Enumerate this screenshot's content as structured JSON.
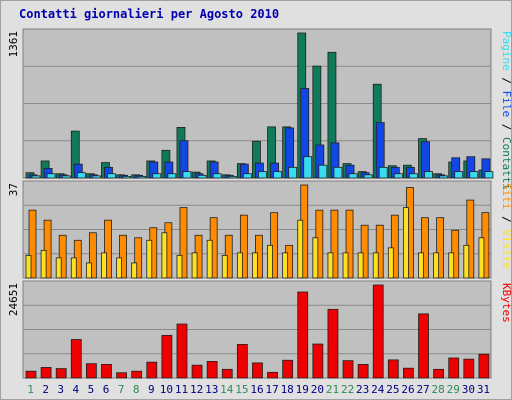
{
  "title": "Contatti giornalieri per Agosto 2010",
  "colors": {
    "background": "#e0e0e0",
    "panel": "#c0c0c0",
    "contatti": "#117a5a",
    "file": "#1346e6",
    "pagine": "#37dcf0",
    "visite": "#ff8c00",
    "siti": "#ffe020",
    "kbytes": "#ee0000",
    "weekend_label": "#2e8b57",
    "weekday_label": "#000080"
  },
  "chart_data": [
    {
      "type": "bar",
      "id": "top",
      "ymax_label": "1361",
      "ylim": [
        0,
        1361
      ],
      "legend": {
        "pagine": "Pagine",
        "sep1": " / ",
        "file": "File",
        "sep2": " / ",
        "contatti": "Contatti"
      },
      "series": [
        {
          "name": "Contatti",
          "color": "#117a5a",
          "values": [
            50,
            160,
            40,
            440,
            40,
            145,
            30,
            30,
            160,
            260,
            475,
            55,
            160,
            30,
            135,
            345,
            480,
            480,
            1361,
            1050,
            1180,
            135,
            60,
            880,
            115,
            120,
            370,
            40,
            150,
            160,
            75
          ]
        },
        {
          "name": "File",
          "color": "#1346e6",
          "values": [
            30,
            90,
            30,
            130,
            30,
            100,
            25,
            25,
            150,
            150,
            350,
            40,
            150,
            25,
            130,
            140,
            140,
            470,
            840,
            310,
            330,
            120,
            50,
            520,
            100,
            100,
            340,
            30,
            190,
            200,
            180
          ]
        },
        {
          "name": "Pagine",
          "color": "#37dcf0",
          "values": [
            20,
            40,
            20,
            50,
            20,
            40,
            15,
            15,
            40,
            40,
            60,
            25,
            40,
            15,
            40,
            60,
            60,
            100,
            200,
            120,
            100,
            40,
            30,
            100,
            40,
            40,
            60,
            20,
            60,
            60,
            60
          ]
        }
      ]
    },
    {
      "type": "bar",
      "id": "mid",
      "ymax_label": "37",
      "ylim": [
        0,
        37
      ],
      "legend": {
        "siti": "Siti",
        "sep": " / ",
        "visite": "Visite"
      },
      "series": [
        {
          "name": "Visite",
          "color": "#ff8c00",
          "values": [
            27,
            23,
            17,
            15,
            18,
            23,
            17,
            16,
            20,
            22,
            28,
            17,
            24,
            17,
            25,
            17,
            26,
            13,
            37,
            27,
            27,
            27,
            21,
            21,
            25,
            36,
            24,
            24,
            19,
            31,
            26
          ]
        },
        {
          "name": "Siti",
          "color": "#ffe020",
          "values": [
            9,
            11,
            8,
            8,
            6,
            10,
            8,
            6,
            15,
            18,
            9,
            10,
            15,
            9,
            10,
            10,
            13,
            10,
            23,
            16,
            10,
            10,
            10,
            10,
            12,
            28,
            10,
            10,
            10,
            13,
            16
          ]
        }
      ]
    },
    {
      "type": "bar",
      "id": "bot",
      "ymax_label": "24651",
      "ylim": [
        0,
        24651
      ],
      "legend": {
        "kbytes": "KBytes"
      },
      "series": [
        {
          "name": "KBytes",
          "color": "#ee0000",
          "values": [
            1800,
            2800,
            2500,
            10200,
            3800,
            3600,
            1400,
            1800,
            4200,
            11300,
            14300,
            3400,
            4400,
            2300,
            8900,
            4000,
            1500,
            4700,
            22800,
            9000,
            18200,
            4600,
            3600,
            24651,
            4800,
            2600,
            17000,
            2300,
            5300,
            5000,
            6300
          ]
        }
      ]
    }
  ],
  "days": [
    "1",
    "2",
    "3",
    "4",
    "5",
    "6",
    "7",
    "8",
    "9",
    "10",
    "11",
    "12",
    "13",
    "14",
    "15",
    "16",
    "17",
    "18",
    "19",
    "20",
    "21",
    "22",
    "23",
    "24",
    "25",
    "26",
    "27",
    "28",
    "29",
    "30",
    "31"
  ],
  "weekend_days": [
    1,
    7,
    8,
    14,
    15,
    21,
    22,
    28,
    29
  ]
}
